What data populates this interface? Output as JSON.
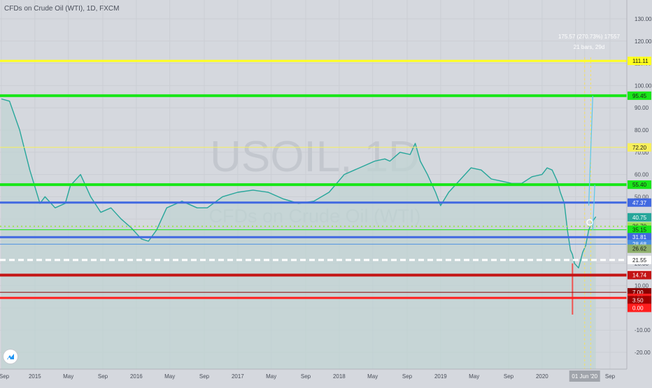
{
  "chart_data": {
    "type": "line",
    "symbol": "CFDs on Crude Oil (WTI), 1D, FXCM",
    "watermark_symbol": "USOIL, 1D",
    "watermark_name": "CFDs on Crude Oil (WTI)",
    "y_axis_ticks": [
      130,
      120,
      110,
      100,
      90,
      80,
      70,
      60,
      50,
      40,
      30,
      20,
      10,
      0,
      -10,
      -20
    ],
    "y_axis_tick_labels": [
      "130.00",
      "120.00",
      "110.00",
      "100.00",
      "90.00",
      "80.00",
      "70.00",
      "60.00",
      "50.00",
      "40.00",
      "30.00",
      "20.00",
      "10.00",
      "0.00",
      "-10.00",
      "-20.00"
    ],
    "x_axis_labels": [
      "Sep",
      "2015",
      "May",
      "Sep",
      "2016",
      "May",
      "Sep",
      "2017",
      "May",
      "Sep",
      "2018",
      "May",
      "Sep",
      "2019",
      "May",
      "Sep",
      "2020",
      "May",
      "01 Jun '20",
      "Sep"
    ],
    "series": [
      {
        "color": "#26a69a",
        "x": [
          2014.67,
          2014.75,
          2014.85,
          2014.95,
          2015.05,
          2015.1,
          2015.2,
          2015.3,
          2015.35,
          2015.45,
          2015.55,
          2015.65,
          2015.75,
          2015.85,
          2015.95,
          2016.05,
          2016.12,
          2016.2,
          2016.3,
          2016.45,
          2016.6,
          2016.7,
          2016.85,
          2017.0,
          2017.15,
          2017.3,
          2017.45,
          2017.6,
          2017.75,
          2017.9,
          2018.05,
          2018.2,
          2018.35,
          2018.45,
          2018.5,
          2018.6,
          2018.7,
          2018.75,
          2018.8,
          2018.87,
          2018.95,
          2019.0,
          2019.08,
          2019.2,
          2019.3,
          2019.4,
          2019.5,
          2019.6,
          2019.7,
          2019.8,
          2019.9,
          2020.0,
          2020.05,
          2020.1,
          2020.15,
          2020.18,
          2020.22,
          2020.25,
          2020.28,
          2020.3,
          2020.32,
          2020.36,
          2020.4,
          2020.43,
          2020.46,
          2020.5,
          2020.53
        ],
        "y": [
          94,
          93,
          80,
          62,
          47,
          50,
          45,
          47,
          55,
          60,
          50,
          43,
          45,
          40,
          36,
          31,
          30,
          35,
          45,
          48,
          45,
          45,
          50,
          52,
          53,
          52,
          49,
          47,
          48,
          52,
          60,
          63,
          66,
          67,
          66,
          70,
          69,
          74,
          66,
          60,
          52,
          46,
          52,
          58,
          63,
          62,
          58,
          57,
          56,
          56,
          59,
          60,
          63,
          62,
          57,
          52,
          47,
          35,
          26,
          24,
          20,
          18,
          25,
          28,
          35,
          39,
          41
        ]
      },
      {
        "color": "#ef5350",
        "x": [
          2020.3,
          2020.3
        ],
        "y": [
          20,
          -3
        ]
      }
    ],
    "annotations": {
      "measure_line_1": "175.57 (270.73%) 17557",
      "measure_line_2": "21 bars, 29d",
      "projection_up": {
        "color": "#5bc8e8",
        "x": [
          2020.46,
          2020.5
        ],
        "y": [
          46,
          95.45
        ]
      },
      "projection_mid": {
        "color": "#5bc8e8",
        "x": [
          2020.5,
          2020.52
        ],
        "y": [
          35,
          55.4
        ]
      },
      "current_price_marker": {
        "x": 2020.47,
        "y": 38.5
      }
    },
    "horizontal_levels": [
      {
        "label": "111.11",
        "value": 111.11,
        "color": "#ffff1e",
        "style": "solid",
        "width": 3
      },
      {
        "label": "95.45",
        "value": 95.45,
        "color": "#19e619",
        "style": "solid",
        "width": 4
      },
      {
        "label": "72.20",
        "value": 72.2,
        "color": "#f7ef5b",
        "style": "solid",
        "width": 1
      },
      {
        "label": "55.45",
        "value": 55.45,
        "color": "#19e619",
        "style": "solid",
        "width": 4
      },
      {
        "label": "55.40",
        "value": 55.4,
        "color": "#19e619",
        "style": "solid",
        "width": 1
      },
      {
        "label": "47.37",
        "value": 47.37,
        "color": "#4169e1",
        "style": "solid",
        "width": 3
      },
      {
        "label": "40.75",
        "value": 40.75,
        "color": "#26a69a",
        "style": "solid",
        "width": 0
      },
      {
        "label": "36.70",
        "value": 36.7,
        "color": "#a2e05a",
        "style": "dotted",
        "width": 2
      },
      {
        "label": "35.15",
        "value": 35.15,
        "color": "#19e619",
        "style": "solid",
        "width": 1
      },
      {
        "label": "31.81",
        "value": 31.81,
        "color": "#4169e1",
        "style": "solid",
        "width": 3
      },
      {
        "label": "28.68",
        "value": 28.68,
        "color": "#4a90e2",
        "style": "solid",
        "width": 1
      },
      {
        "label": "26.62",
        "value": 26.62,
        "color": "#8fb06c",
        "style": "solid",
        "width": 0
      },
      {
        "label": "21.55",
        "value": 21.55,
        "color": "#ffffff",
        "style": "dashed",
        "width": 3
      },
      {
        "label": "15.25",
        "value": 15.25,
        "color": "#ffffff",
        "style": "solid",
        "width": 0
      },
      {
        "label": "14.74",
        "value": 14.74,
        "color": "#c41414",
        "style": "solid",
        "width": 4
      },
      {
        "label": "7.00",
        "value": 7.0,
        "color": "#8b0000",
        "style": "solid",
        "width": 1
      },
      {
        "label": "4.50",
        "value": 4.5,
        "color": "#ff1e1e",
        "style": "solid",
        "width": 3
      },
      {
        "label": "3.50",
        "value": 3.5,
        "color": "#a00000",
        "style": "solid",
        "width": 0
      },
      {
        "label": "0.00",
        "value": 0.0,
        "color": "#ff1e1e",
        "style": "solid",
        "width": 0
      }
    ],
    "vertical_markers": [
      {
        "x": 2020.42,
        "color": "#f5e063"
      },
      {
        "x": 2020.48,
        "color": "#f5e063"
      }
    ],
    "grid": true,
    "price_axis_side": "right"
  }
}
